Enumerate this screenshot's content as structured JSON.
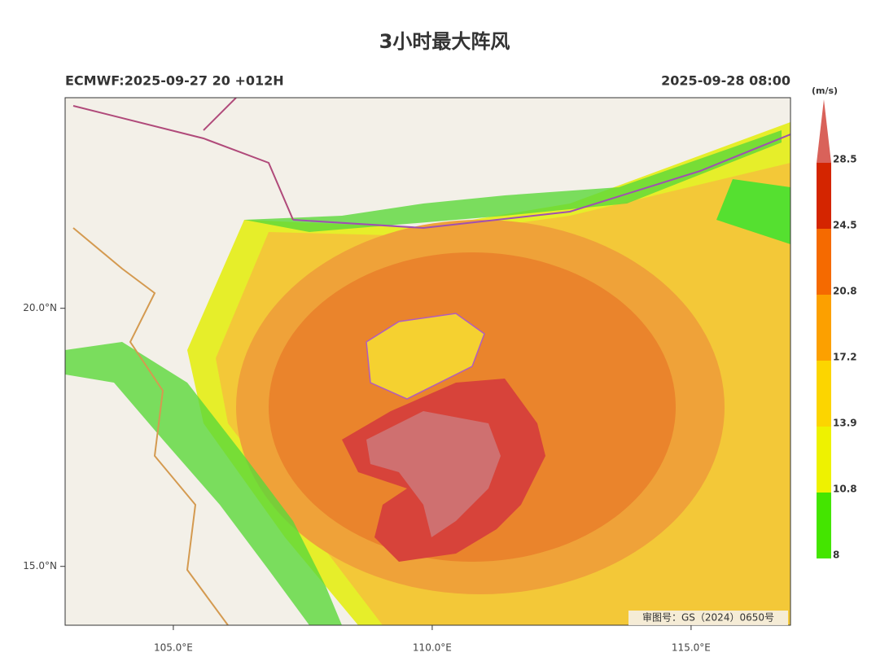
{
  "title": "3小时最大阵风",
  "subtitle_left": "ECMWF:2025-09-27 20 +012H",
  "subtitle_right": "2025-09-28 08:00",
  "map": {
    "xlim": [
      102.91,
      116.92
    ],
    "ylim": [
      13.86,
      24.08
    ],
    "xticks": [
      {
        "value": 105,
        "label": "105.0°E"
      },
      {
        "value": 110,
        "label": "110.0°E"
      },
      {
        "value": 115,
        "label": "115.0°E"
      }
    ],
    "yticks": [
      {
        "value": 15,
        "label": "15.0°N"
      },
      {
        "value": 20,
        "label": "20.0°N"
      }
    ]
  },
  "colorbar": {
    "unit": "(m/s)",
    "levels": [
      8,
      10.8,
      13.9,
      17.2,
      20.8,
      24.5,
      28.5
    ],
    "colors": [
      "#44e500",
      "#eef200",
      "#fcd500",
      "#fca000",
      "#f56a00",
      "#d42500",
      "#d9625a"
    ]
  },
  "note": "审图号：GS（2024）0650号"
}
